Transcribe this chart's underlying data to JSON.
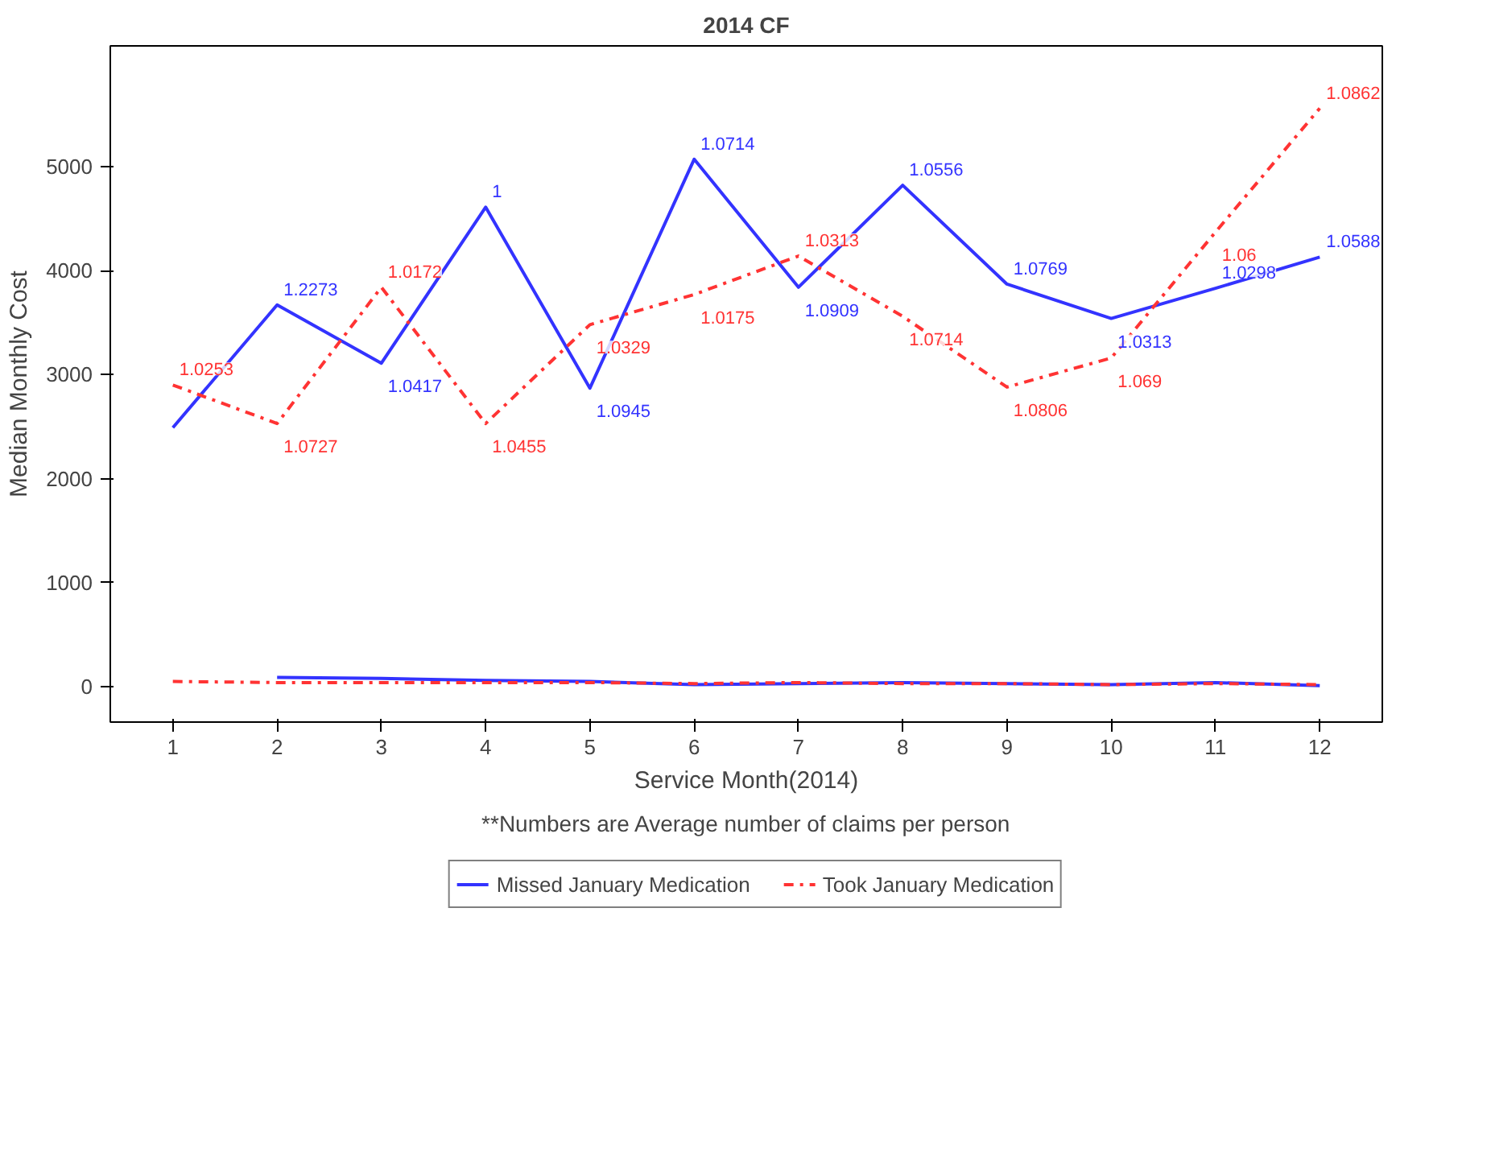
{
  "chart_data": {
    "type": "line",
    "title": "2014 CF",
    "xlabel": "Service Month(2014)",
    "ylabel": "Median Monthly Cost",
    "annotations": [
      "**Numbers are Average number of claims per person",
      {
        "text": "1.2273",
        "x": 2,
        "y": 3670
      },
      {
        "text": "1.0417",
        "x": 3,
        "y": 3110
      },
      {
        "text": "1",
        "x": 4,
        "y": 4610
      },
      {
        "text": "1.0945",
        "x": 5,
        "y": 2870
      },
      {
        "text": "1.0714",
        "x": 6,
        "y": 5070
      },
      {
        "text": "1.0909",
        "x": 7,
        "y": 3840
      },
      {
        "text": "1.0556",
        "x": 8,
        "y": 4820
      },
      {
        "text": "1.0769",
        "x": 9,
        "y": 3870
      },
      {
        "text": "1.0313",
        "x": 10,
        "y": 3540
      },
      {
        "text": "1.0298",
        "x": 11,
        "y": 3830
      },
      {
        "text": "1.0588",
        "x": 12,
        "y": 4130
      },
      {
        "text": "1.0253",
        "x": 1,
        "y": 2900
      },
      {
        "text": "1.0727",
        "x": 2,
        "y": 2530
      },
      {
        "text": "1.0172",
        "x": 3,
        "y": 3840
      },
      {
        "text": "1.0455",
        "x": 4,
        "y": 2530
      },
      {
        "text": "1.0329",
        "x": 5,
        "y": 3480
      },
      {
        "text": "1.0175",
        "x": 6,
        "y": 3770
      },
      {
        "text": "1.0313",
        "x": 7,
        "y": 4140
      },
      {
        "text": "1.0714",
        "x": 8,
        "y": 3560
      },
      {
        "text": "1.0806",
        "x": 9,
        "y": 2880
      },
      {
        "text": "1.069",
        "x": 10,
        "y": 3160
      },
      {
        "text": "1.06",
        "x": 11,
        "y": 4370
      },
      {
        "text": "1.0862",
        "x": 12,
        "y": 5560
      }
    ],
    "x": [
      1,
      2,
      3,
      4,
      5,
      6,
      7,
      8,
      9,
      10,
      11,
      12
    ],
    "xlim": [
      0.4,
      12.6
    ],
    "xticks": [
      1,
      2,
      3,
      4,
      5,
      6,
      7,
      8,
      9,
      10,
      11,
      12
    ],
    "ylim": [
      -340,
      6160
    ],
    "yticks": [
      0,
      1000,
      2000,
      3000,
      4000,
      5000
    ],
    "grid": false,
    "legend": "bottom",
    "marker": "none",
    "series": [
      {
        "name": "Missed January Medication",
        "color": "#3333ff",
        "line_style": "solid",
        "values": [
          2490,
          3670,
          3110,
          4610,
          2870,
          5070,
          3840,
          4820,
          3870,
          3540,
          3830,
          4130
        ]
      },
      {
        "name": "Took January Medication",
        "color": "#ff3333",
        "line_style": "dashed",
        "values": [
          2900,
          2530,
          3840,
          2530,
          3480,
          3770,
          4140,
          3560,
          2880,
          3160,
          4370,
          5560
        ]
      },
      {
        "color": "#3333ff",
        "line_style": "solid",
        "values": [
          null,
          90,
          80,
          60,
          50,
          20,
          30,
          40,
          30,
          20,
          40,
          10
        ]
      },
      {
        "color": "#ff3333",
        "line_style": "dashed",
        "values": [
          50,
          40,
          40,
          40,
          40,
          30,
          40,
          30,
          30,
          20,
          30,
          20
        ]
      }
    ]
  }
}
